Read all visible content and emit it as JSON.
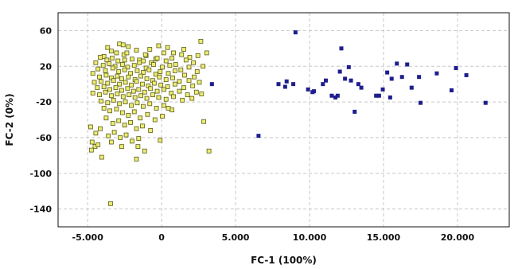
{
  "chart_data": {
    "type": "scatter",
    "title": "",
    "xlabel": "FC-1 (100%)",
    "ylabel": "FC-2 (0%)",
    "xlim": [
      -7000,
      23500
    ],
    "ylim": [
      -160,
      80
    ],
    "x_ticks": [
      -5000,
      0,
      5000,
      10000,
      15000,
      20000
    ],
    "x_tick_labels": [
      "-5.000",
      "0",
      "5.000",
      "10.000",
      "15.000",
      "20.000"
    ],
    "y_ticks": [
      60,
      20,
      -20,
      -60,
      -100,
      -140
    ],
    "y_tick_labels": [
      "60",
      "20",
      "-20",
      "-60",
      "-100",
      "-140"
    ],
    "grid": true,
    "legend": "none",
    "colors": {
      "yellow_fill": "#ecec73",
      "yellow_stroke": "#5c5c1a",
      "blue": "#1e1e8e",
      "grid": "#c8c8c8",
      "frame": "#111111"
    },
    "series": [
      {
        "marker": "square-hollow",
        "color": "#ecec73",
        "points": [
          [
            -3650,
            41
          ],
          [
            -3400,
            37
          ],
          [
            -2850,
            45
          ],
          [
            -2600,
            44
          ],
          [
            -2250,
            42
          ],
          [
            -3050,
            35
          ],
          [
            -3900,
            31
          ],
          [
            -2550,
            33
          ],
          [
            -2350,
            35
          ],
          [
            -1700,
            38
          ],
          [
            -800,
            39
          ],
          [
            -200,
            43
          ],
          [
            400,
            41
          ],
          [
            800,
            35
          ],
          [
            1500,
            39
          ],
          [
            2650,
            48
          ],
          [
            3050,
            35
          ],
          [
            2450,
            32
          ],
          [
            1900,
            30
          ],
          [
            1350,
            33
          ],
          [
            700,
            29
          ],
          [
            150,
            35
          ],
          [
            -400,
            28
          ],
          [
            -1050,
            32
          ],
          [
            -1500,
            27
          ],
          [
            -4150,
            30
          ],
          [
            -3700,
            27
          ],
          [
            -3350,
            29
          ],
          [
            -2950,
            26
          ],
          [
            -2500,
            27
          ],
          [
            -2000,
            28
          ],
          [
            -1250,
            26
          ],
          [
            -700,
            24
          ],
          [
            -300,
            29
          ],
          [
            300,
            26
          ],
          [
            950,
            22
          ],
          [
            1650,
            27
          ],
          [
            2150,
            24
          ],
          [
            2800,
            20
          ],
          [
            -4450,
            24
          ],
          [
            -3950,
            21
          ],
          [
            -3550,
            23
          ],
          [
            -3150,
            20
          ],
          [
            -2650,
            22
          ],
          [
            -2300,
            19
          ],
          [
            -1850,
            21
          ],
          [
            -1500,
            24
          ],
          [
            -1050,
            18
          ],
          [
            -550,
            22
          ],
          [
            50,
            19
          ],
          [
            550,
            21
          ],
          [
            1300,
            16
          ],
          [
            1850,
            19
          ],
          [
            2400,
            14
          ],
          [
            -4300,
            17
          ],
          [
            -3800,
            15
          ],
          [
            -3300,
            18
          ],
          [
            -2900,
            14
          ],
          [
            -2500,
            16
          ],
          [
            -2100,
            12
          ],
          [
            -1650,
            15
          ],
          [
            -1250,
            13
          ],
          [
            -850,
            16
          ],
          [
            -400,
            11
          ],
          [
            -100,
            14
          ],
          [
            450,
            12
          ],
          [
            900,
            15
          ],
          [
            1550,
            10
          ],
          [
            2200,
            8
          ],
          [
            -4650,
            12
          ],
          [
            -4200,
            8
          ],
          [
            -3750,
            10
          ],
          [
            -3400,
            7
          ],
          [
            -3000,
            9
          ],
          [
            -2700,
            6
          ],
          [
            -2250,
            8
          ],
          [
            -1800,
            5
          ],
          [
            -1400,
            9
          ],
          [
            -1000,
            6
          ],
          [
            -600,
            4
          ],
          [
            -150,
            8
          ],
          [
            300,
            5
          ],
          [
            750,
            7
          ],
          [
            1200,
            3
          ],
          [
            1850,
            4
          ],
          [
            -4550,
            2
          ],
          [
            -4100,
            3
          ],
          [
            -3650,
            1
          ],
          [
            -3250,
            4
          ],
          [
            -2850,
            0
          ],
          [
            -2450,
            2
          ],
          [
            -2050,
            -1
          ],
          [
            -1700,
            3
          ],
          [
            -1300,
            0
          ],
          [
            -900,
            -2
          ],
          [
            -500,
            1
          ],
          [
            -50,
            -1
          ],
          [
            400,
            -3
          ],
          [
            900,
            0
          ],
          [
            1500,
            -4
          ],
          [
            2100,
            -2
          ],
          [
            2550,
            2
          ],
          [
            -4350,
            -4
          ],
          [
            -3900,
            -3
          ],
          [
            -3500,
            -6
          ],
          [
            -3100,
            -4
          ],
          [
            -2700,
            -7
          ],
          [
            -2300,
            -5
          ],
          [
            -1900,
            -8
          ],
          [
            -1550,
            -6
          ],
          [
            -1150,
            -9
          ],
          [
            -750,
            -5
          ],
          [
            -300,
            -8
          ],
          [
            150,
            -6
          ],
          [
            650,
            -10
          ],
          [
            1200,
            -8
          ],
          [
            1750,
            -12
          ],
          [
            2350,
            -9
          ],
          [
            -4650,
            -10
          ],
          [
            -4200,
            -12
          ],
          [
            -3800,
            -9
          ],
          [
            -3400,
            -13
          ],
          [
            -3000,
            -11
          ],
          [
            -2600,
            -14
          ],
          [
            -2200,
            -12
          ],
          [
            -1800,
            -15
          ],
          [
            -1400,
            -13
          ],
          [
            -1000,
            -16
          ],
          [
            -600,
            -12
          ],
          [
            -200,
            -15
          ],
          [
            300,
            -17
          ],
          [
            800,
            -14
          ],
          [
            1400,
            -18
          ],
          [
            2050,
            -16
          ],
          [
            -4100,
            -19
          ],
          [
            -3650,
            -21
          ],
          [
            -3250,
            -18
          ],
          [
            -2850,
            -22
          ],
          [
            -2450,
            -20
          ],
          [
            -2050,
            -24
          ],
          [
            -1650,
            -21
          ],
          [
            -1250,
            -25
          ],
          [
            -800,
            -22
          ],
          [
            -350,
            -27
          ],
          [
            150,
            -24
          ],
          [
            700,
            -29
          ],
          [
            -3900,
            -27
          ],
          [
            -3500,
            -30
          ],
          [
            -3050,
            -28
          ],
          [
            -2650,
            -32
          ],
          [
            -2250,
            -35
          ],
          [
            -1850,
            -31
          ],
          [
            -1450,
            -38
          ],
          [
            -950,
            -34
          ],
          [
            -450,
            -40
          ],
          [
            50,
            -36
          ],
          [
            -3750,
            -38
          ],
          [
            -3300,
            -44
          ],
          [
            -2900,
            -41
          ],
          [
            -2500,
            -46
          ],
          [
            -2100,
            -43
          ],
          [
            -1700,
            -50
          ],
          [
            -1300,
            -47
          ],
          [
            -750,
            -52
          ],
          [
            -4800,
            -48
          ],
          [
            -4450,
            -55
          ],
          [
            -4150,
            -50
          ],
          [
            -3600,
            -58
          ],
          [
            -3200,
            -54
          ],
          [
            -2800,
            -60
          ],
          [
            -2400,
            -57
          ],
          [
            -2000,
            -64
          ],
          [
            -1550,
            -61
          ],
          [
            -4700,
            -65
          ],
          [
            -4500,
            -70
          ],
          [
            -4300,
            -68
          ],
          [
            -4750,
            -74
          ],
          [
            -3400,
            -65
          ],
          [
            -2700,
            -70
          ],
          [
            -1600,
            -70
          ],
          [
            -1150,
            -75
          ],
          [
            -4050,
            -82
          ],
          [
            -1700,
            -84
          ],
          [
            -100,
            -63
          ],
          [
            2850,
            -42
          ],
          [
            3200,
            -75
          ],
          [
            -3450,
            -134
          ],
          [
            450,
            -27
          ],
          [
            2700,
            -11
          ],
          [
            -1100,
            33
          ]
        ]
      },
      {
        "marker": "square-filled",
        "color": "#1e1e8e",
        "points": [
          [
            3400,
            0
          ],
          [
            6550,
            -58
          ],
          [
            7900,
            0
          ],
          [
            8350,
            -3
          ],
          [
            8450,
            3
          ],
          [
            8900,
            0
          ],
          [
            9050,
            58
          ],
          [
            9900,
            -6
          ],
          [
            10200,
            -9
          ],
          [
            10300,
            -8
          ],
          [
            10900,
            0
          ],
          [
            11100,
            4
          ],
          [
            11500,
            -13
          ],
          [
            11750,
            -15
          ],
          [
            11900,
            -13
          ],
          [
            12050,
            14
          ],
          [
            12150,
            40
          ],
          [
            12400,
            6
          ],
          [
            12650,
            19
          ],
          [
            12800,
            4
          ],
          [
            13050,
            -31
          ],
          [
            13300,
            0
          ],
          [
            13500,
            -4
          ],
          [
            14500,
            -13
          ],
          [
            14700,
            -13
          ],
          [
            14950,
            -6
          ],
          [
            15250,
            13
          ],
          [
            15450,
            -15
          ],
          [
            15550,
            6
          ],
          [
            15900,
            23
          ],
          [
            16250,
            8
          ],
          [
            16600,
            22
          ],
          [
            16900,
            -4
          ],
          [
            17400,
            8
          ],
          [
            17500,
            -21
          ],
          [
            18600,
            12
          ],
          [
            19600,
            -7
          ],
          [
            19900,
            18
          ],
          [
            20600,
            10
          ],
          [
            21900,
            -21
          ]
        ]
      }
    ]
  }
}
